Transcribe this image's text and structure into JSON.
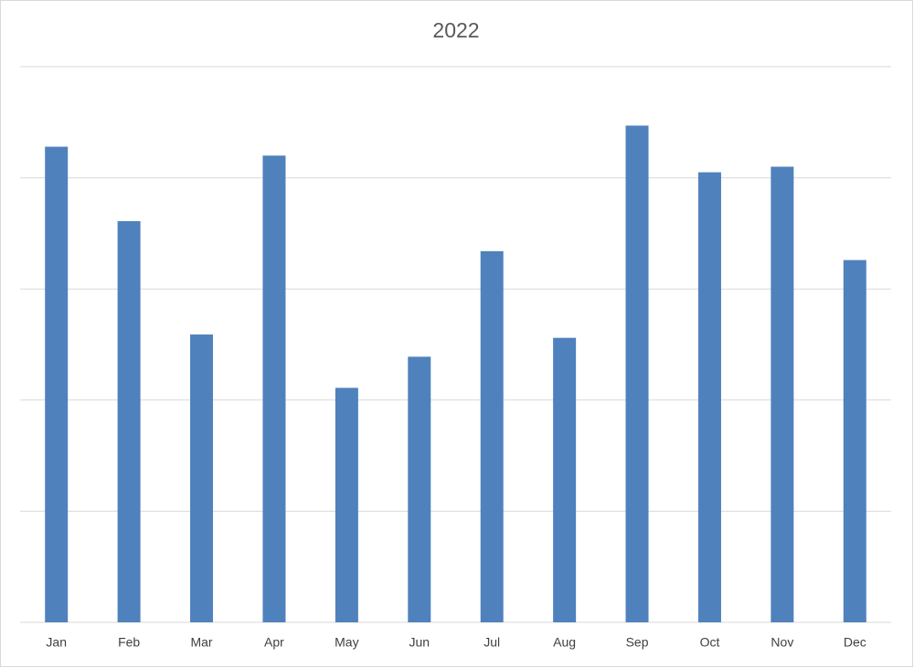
{
  "chart_data": {
    "type": "bar",
    "title": "2022",
    "categories": [
      "Jan",
      "Feb",
      "Mar",
      "Apr",
      "May",
      "Jun",
      "Jul",
      "Aug",
      "Sep",
      "Oct",
      "Nov",
      "Dec"
    ],
    "values": [
      4.28,
      3.61,
      2.59,
      4.2,
      2.11,
      2.39,
      3.34,
      2.56,
      4.47,
      4.05,
      4.1,
      3.26
    ],
    "color": "#4f81bd",
    "ylim": [
      0,
      5
    ],
    "yticks": [
      0,
      1,
      2,
      3,
      4,
      5
    ],
    "grid": true,
    "show_tick_labels": false
  }
}
